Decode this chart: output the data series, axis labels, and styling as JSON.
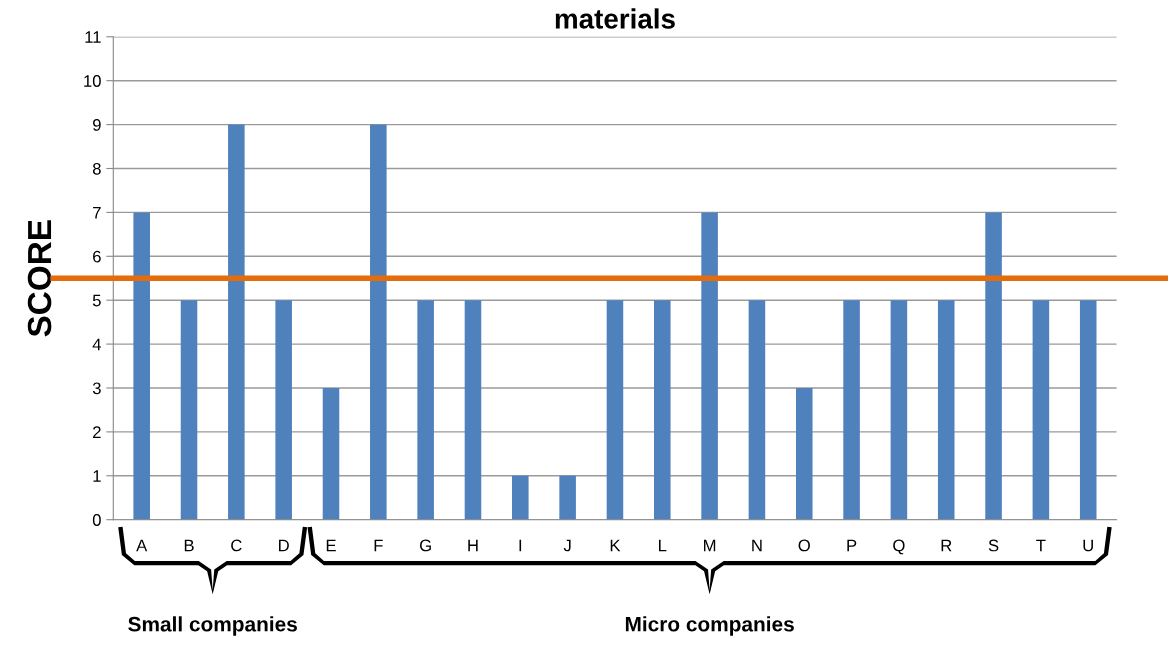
{
  "chart_data": {
    "type": "bar",
    "title": "materials",
    "ylabel": "SCORE",
    "categories": [
      "A",
      "B",
      "C",
      "D",
      "E",
      "F",
      "G",
      "H",
      "I",
      "J",
      "K",
      "L",
      "M",
      "N",
      "O",
      "P",
      "Q",
      "R",
      "S",
      "T",
      "U"
    ],
    "values": [
      7,
      5,
      9,
      5,
      3,
      9,
      5,
      5,
      1,
      1,
      5,
      5,
      7,
      5,
      3,
      5,
      5,
      5,
      7,
      5,
      5
    ],
    "color": "#4f81bd",
    "ylim": [
      0,
      11
    ],
    "yticks": [
      0,
      1,
      2,
      3,
      4,
      5,
      6,
      7,
      8,
      9,
      10,
      11
    ],
    "grid": "y",
    "ref_lines": [
      {
        "axis": "y",
        "value": 5.5,
        "color": "#e46c0a"
      }
    ],
    "annotations": [
      "Small companies",
      "Micro companies"
    ]
  }
}
